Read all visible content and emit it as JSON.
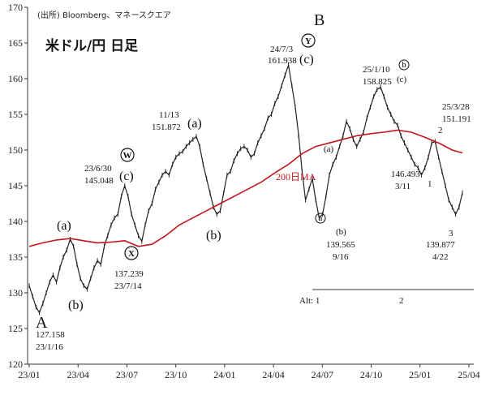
{
  "chart_data": {
    "type": "line",
    "source": "(出所) Bloomberg、マネースクエア",
    "title": "米ドル/円 日足",
    "xlabel": "",
    "ylabel": "",
    "ylim": [
      120,
      170
    ],
    "yticks": [
      120,
      125,
      130,
      135,
      140,
      145,
      150,
      155,
      160,
      165,
      170
    ],
    "xticks": [
      "23/01",
      "23/04",
      "23/07",
      "23/10",
      "24/01",
      "24/04",
      "24/07",
      "24/10",
      "25/01",
      "25/04"
    ],
    "grid": false,
    "legend": "none",
    "colors": {
      "price": "#222222",
      "ma": "#c0161c"
    },
    "series": [
      {
        "name": "",
        "values_note": "",
        "x": [
          0,
          1,
          2,
          3,
          4,
          5,
          6,
          7,
          8,
          9,
          10,
          11,
          12,
          13,
          14,
          15,
          16,
          17,
          18,
          19,
          20,
          21,
          22,
          23,
          24,
          25,
          26,
          27,
          28,
          29,
          30,
          31,
          32,
          33,
          34,
          35,
          36,
          37,
          38,
          39,
          40,
          41,
          42,
          43,
          44,
          45,
          46,
          47,
          48,
          49,
          50,
          51,
          52,
          53,
          54,
          55,
          56,
          57,
          58,
          59,
          60,
          61,
          62,
          63,
          64,
          65,
          66,
          67,
          68,
          69,
          70,
          71,
          72,
          73,
          74,
          75,
          76,
          77,
          78,
          79,
          80,
          81,
          82,
          83,
          84,
          85,
          86,
          87,
          88,
          89,
          90,
          91,
          92,
          93,
          94,
          95,
          96,
          97,
          98,
          99,
          100,
          101,
          102,
          103,
          104,
          105,
          106,
          107,
          108,
          109,
          110,
          111,
          112,
          113,
          114,
          115,
          116,
          117,
          118,
          119,
          120,
          121,
          122,
          123,
          124,
          125,
          126,
          127
        ],
        "values": [
          131.0,
          129.5,
          128.0,
          127.2,
          128.5,
          130.0,
          131.5,
          132.5,
          131.5,
          133.5,
          135.0,
          136.0,
          137.5,
          136.5,
          134.0,
          132.0,
          131.0,
          130.5,
          132.0,
          133.5,
          134.5,
          134.0,
          136.5,
          138.0,
          139.5,
          140.5,
          141.0,
          143.5,
          145.0,
          143.5,
          141.0,
          139.5,
          138.0,
          137.2,
          139.5,
          141.5,
          142.5,
          144.5,
          145.5,
          146.5,
          147.0,
          146.5,
          148.0,
          149.0,
          149.5,
          149.8,
          150.5,
          151.0,
          151.5,
          151.9,
          150.5,
          148.0,
          146.0,
          144.0,
          142.0,
          141.0,
          141.5,
          144.0,
          146.5,
          147.0,
          148.5,
          149.5,
          150.2,
          150.5,
          150.0,
          149.0,
          149.5,
          151.0,
          152.0,
          153.0,
          154.5,
          155.0,
          156.5,
          157.5,
          159.0,
          160.5,
          161.9,
          159.0,
          156.0,
          152.0,
          147.0,
          143.0,
          144.5,
          146.0,
          143.0,
          140.5,
          141.0,
          143.5,
          146.5,
          148.0,
          149.0,
          150.5,
          152.0,
          154.0,
          153.0,
          151.5,
          150.5,
          151.5,
          152.5,
          154.5,
          156.0,
          157.5,
          158.5,
          158.8,
          157.5,
          156.0,
          155.0,
          154.0,
          153.5,
          152.0,
          151.0,
          150.0,
          149.0,
          148.0,
          147.5,
          146.5,
          147.5,
          149.0,
          151.0,
          151.2,
          149.0,
          147.0,
          145.0,
          143.0,
          142.0,
          141.0,
          142.0,
          144.0
        ]
      },
      {
        "name": "200日MA",
        "x": [
          0,
          4,
          8,
          12,
          16,
          20,
          24,
          28,
          32,
          36,
          40,
          44,
          48,
          52,
          56,
          60,
          64,
          68,
          72,
          76,
          80,
          84,
          88,
          92,
          96,
          100,
          104,
          108,
          112,
          116,
          120,
          124,
          127
        ],
        "values": [
          136.5,
          137.0,
          137.4,
          137.6,
          137.3,
          137.0,
          137.1,
          137.3,
          136.5,
          136.8,
          138.0,
          139.5,
          140.5,
          141.5,
          142.5,
          143.5,
          144.5,
          145.5,
          146.8,
          148.0,
          149.5,
          150.5,
          151.0,
          151.5,
          152.0,
          152.3,
          152.5,
          152.8,
          152.5,
          151.8,
          151.0,
          150.0,
          149.6
        ]
      }
    ],
    "annotations": {
      "wave_A": "A",
      "wave_B": "B",
      "w_a": "(a)",
      "w_b": "(b)",
      "w_c": "(c)",
      "w_w": "W",
      "w_x": "X",
      "w_y": "Y",
      "w_a2": "(a)",
      "w_b2": "(b)",
      "w_c2": "(c)",
      "low1": "127.158",
      "low1_date": "23/1/16",
      "high1_date": "23/6/30",
      "high1": "145.048",
      "low2": "137.239",
      "low2_date": "23/7/14",
      "high2_date": "11/13",
      "high2": "151.872",
      "high3_date": "24/7/3",
      "high3": "161.938",
      "ma_label": "200日MA",
      "small_a": "(a)",
      "circ_a": "a",
      "small_b": "(b)",
      "low3": "139.565",
      "low3_date": "9/16",
      "high4_date": "25/1/10",
      "high4": "158.825",
      "circ_b": "b",
      "small_c": "(c)",
      "low4": "146.493",
      "low4_date": "3/11",
      "one": "1",
      "two": "2",
      "high5_date": "25/3/28",
      "high5": "151.191",
      "three": "3",
      "low5": "139.877",
      "low5_date": "4/22",
      "alt": "Alt: 1",
      "alt_2": "2"
    }
  }
}
